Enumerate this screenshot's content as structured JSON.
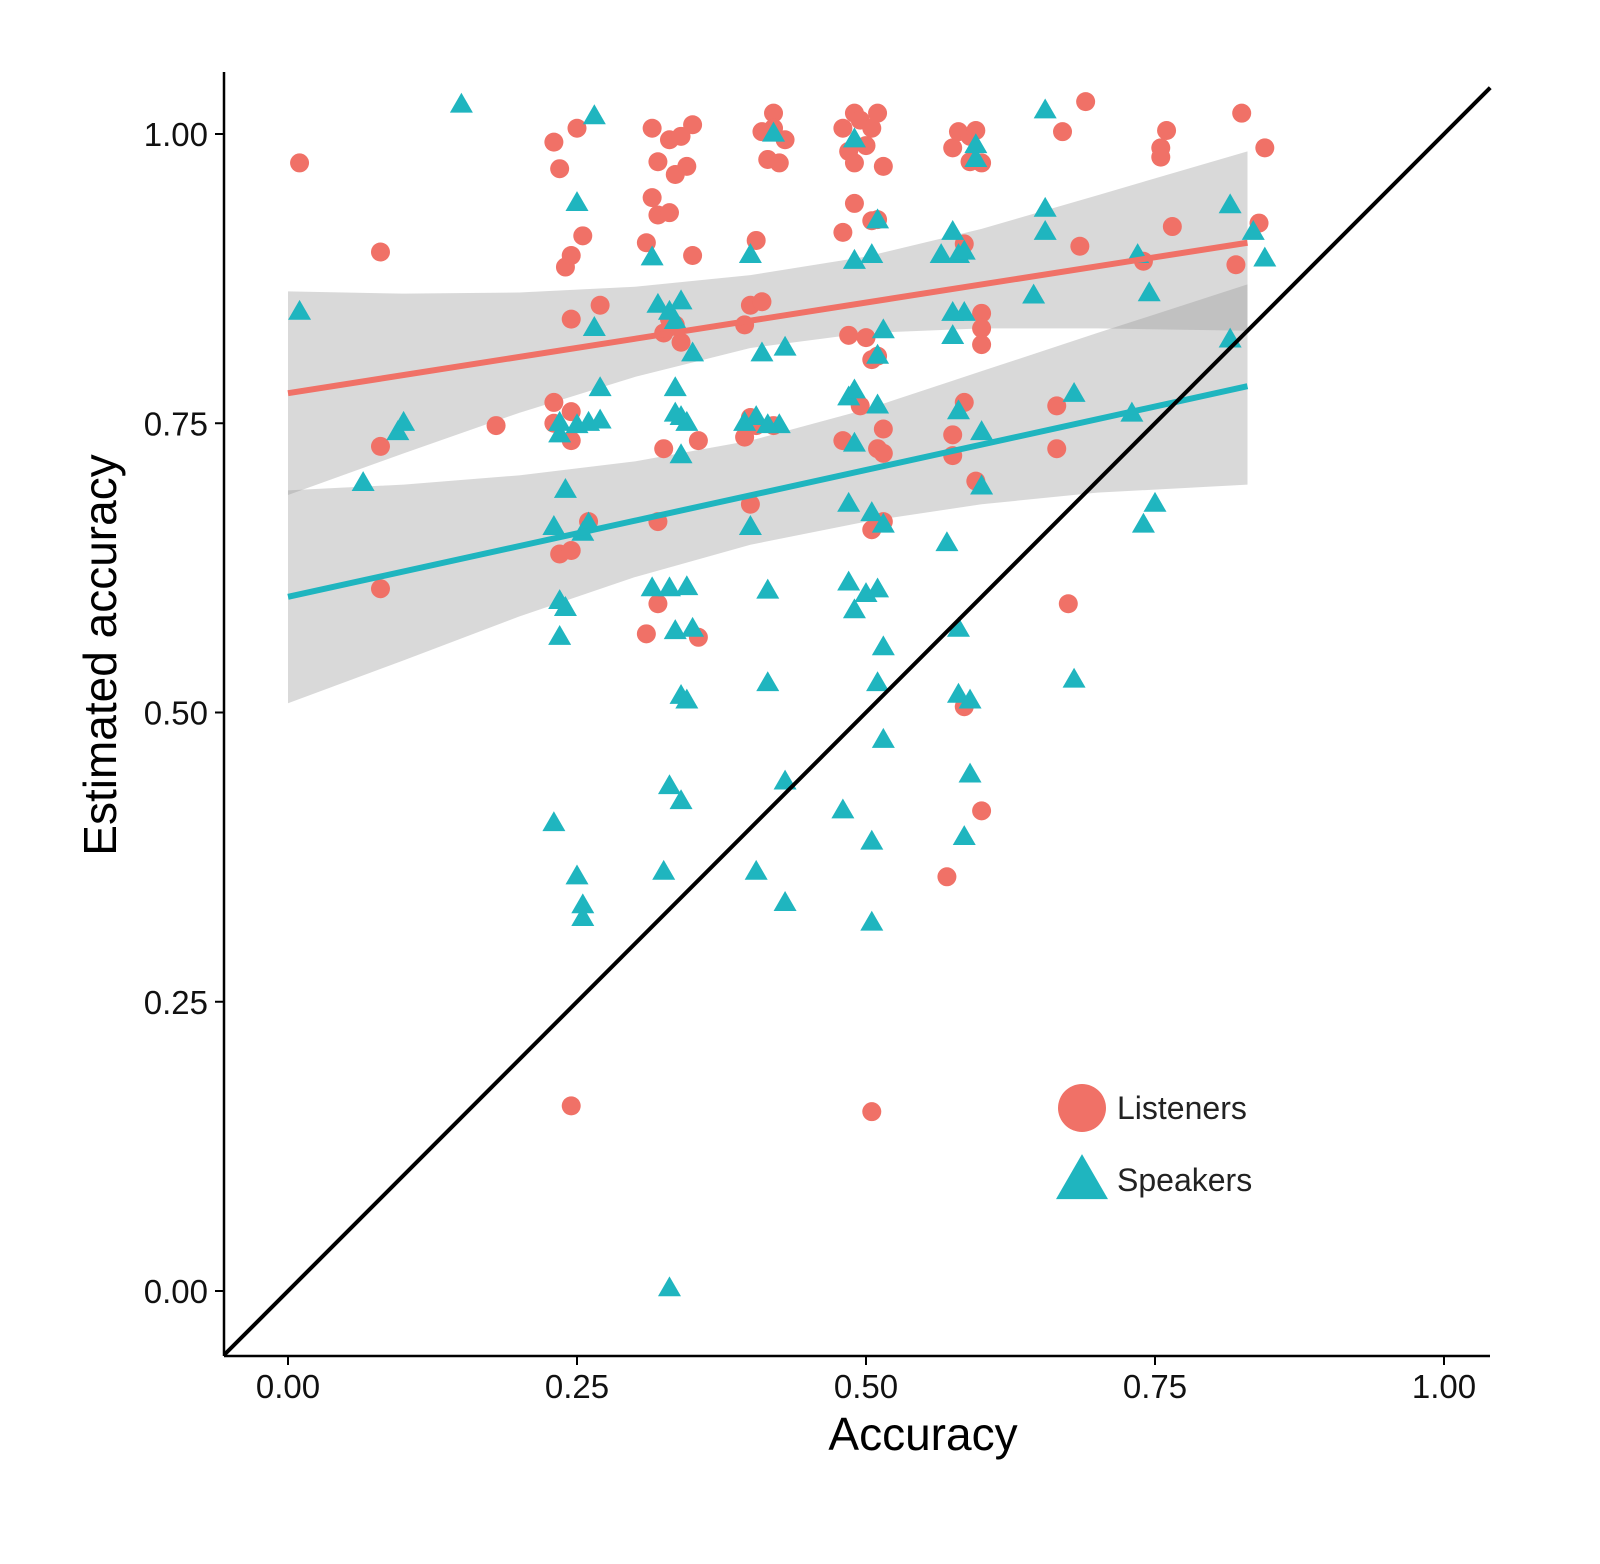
{
  "chart_data": {
    "type": "scatter",
    "xlabel": "Accuracy",
    "ylabel": "Estimated accuracy",
    "xlim": [
      -0.055,
      1.04
    ],
    "ylim": [
      -0.055,
      1.055
    ],
    "xticks": [
      "0.00",
      "0.25",
      "0.50",
      "0.75",
      "1.00"
    ],
    "yticks": [
      "0.00",
      "0.25",
      "0.50",
      "0.75",
      "1.00"
    ],
    "grid": false,
    "legend": "bottom-right",
    "reference_line": {
      "x": [
        -0.055,
        1.04
      ],
      "y": [
        -0.055,
        1.04
      ]
    },
    "series": [
      {
        "name": "Listeners",
        "marker": "circle",
        "color": "#F07167",
        "fit": {
          "x": [
            0.0,
            0.83
          ],
          "y": [
            0.776,
            0.906
          ]
        },
        "band": {
          "x": [
            0.0,
            0.1,
            0.2,
            0.3,
            0.4,
            0.5,
            0.6,
            0.7,
            0.83
          ],
          "upper": [
            0.864,
            0.862,
            0.863,
            0.868,
            0.878,
            0.894,
            0.918,
            0.947,
            0.985
          ],
          "lower": [
            0.688,
            0.724,
            0.759,
            0.79,
            0.815,
            0.828,
            0.832,
            0.832,
            0.83
          ]
        },
        "points": [
          [
            0.01,
            0.975
          ],
          [
            0.08,
            0.898
          ],
          [
            0.08,
            0.73
          ],
          [
            0.08,
            0.607
          ],
          [
            0.18,
            0.748
          ],
          [
            0.23,
            0.993
          ],
          [
            0.235,
            0.97
          ],
          [
            0.24,
            0.885
          ],
          [
            0.245,
            0.895
          ],
          [
            0.25,
            1.005
          ],
          [
            0.255,
            0.912
          ],
          [
            0.245,
            0.84
          ],
          [
            0.27,
            0.852
          ],
          [
            0.23,
            0.768
          ],
          [
            0.245,
            0.76
          ],
          [
            0.23,
            0.75
          ],
          [
            0.245,
            0.735
          ],
          [
            0.235,
            0.637
          ],
          [
            0.245,
            0.64
          ],
          [
            0.26,
            0.665
          ],
          [
            0.245,
            0.16
          ],
          [
            0.315,
            1.005
          ],
          [
            0.33,
            0.995
          ],
          [
            0.34,
            0.998
          ],
          [
            0.35,
            1.008
          ],
          [
            0.32,
            0.976
          ],
          [
            0.335,
            0.965
          ],
          [
            0.345,
            0.972
          ],
          [
            0.315,
            0.945
          ],
          [
            0.32,
            0.93
          ],
          [
            0.33,
            0.932
          ],
          [
            0.31,
            0.906
          ],
          [
            0.35,
            0.895
          ],
          [
            0.325,
            0.828
          ],
          [
            0.335,
            0.835
          ],
          [
            0.34,
            0.82
          ],
          [
            0.33,
            0.84
          ],
          [
            0.325,
            0.728
          ],
          [
            0.355,
            0.735
          ],
          [
            0.32,
            0.665
          ],
          [
            0.32,
            0.594
          ],
          [
            0.31,
            0.568
          ],
          [
            0.355,
            0.565
          ],
          [
            0.42,
            1.018
          ],
          [
            0.42,
            1.005
          ],
          [
            0.43,
            0.995
          ],
          [
            0.41,
            1.002
          ],
          [
            0.415,
            0.978
          ],
          [
            0.425,
            0.975
          ],
          [
            0.405,
            0.908
          ],
          [
            0.4,
            0.852
          ],
          [
            0.41,
            0.855
          ],
          [
            0.395,
            0.835
          ],
          [
            0.4,
            0.755
          ],
          [
            0.405,
            0.748
          ],
          [
            0.395,
            0.738
          ],
          [
            0.4,
            0.68
          ],
          [
            0.42,
            0.748
          ],
          [
            0.48,
            1.005
          ],
          [
            0.49,
            1.018
          ],
          [
            0.495,
            1.012
          ],
          [
            0.505,
            1.005
          ],
          [
            0.51,
            1.018
          ],
          [
            0.5,
            0.99
          ],
          [
            0.485,
            0.985
          ],
          [
            0.49,
            0.975
          ],
          [
            0.515,
            0.972
          ],
          [
            0.49,
            0.94
          ],
          [
            0.505,
            0.925
          ],
          [
            0.51,
            0.926
          ],
          [
            0.48,
            0.915
          ],
          [
            0.485,
            0.826
          ],
          [
            0.5,
            0.824
          ],
          [
            0.505,
            0.805
          ],
          [
            0.51,
            0.808
          ],
          [
            0.495,
            0.765
          ],
          [
            0.48,
            0.735
          ],
          [
            0.51,
            0.728
          ],
          [
            0.515,
            0.745
          ],
          [
            0.515,
            0.724
          ],
          [
            0.505,
            0.658
          ],
          [
            0.515,
            0.665
          ],
          [
            0.505,
            0.155
          ],
          [
            0.575,
            0.988
          ],
          [
            0.58,
            1.002
          ],
          [
            0.59,
            0.998
          ],
          [
            0.595,
            1.003
          ],
          [
            0.59,
            0.976
          ],
          [
            0.6,
            0.975
          ],
          [
            0.585,
            0.905
          ],
          [
            0.6,
            0.845
          ],
          [
            0.6,
            0.832
          ],
          [
            0.6,
            0.818
          ],
          [
            0.585,
            0.768
          ],
          [
            0.575,
            0.74
          ],
          [
            0.575,
            0.722
          ],
          [
            0.595,
            0.7
          ],
          [
            0.585,
            0.505
          ],
          [
            0.6,
            0.415
          ],
          [
            0.57,
            0.358
          ],
          [
            0.67,
            1.002
          ],
          [
            0.69,
            1.028
          ],
          [
            0.685,
            0.903
          ],
          [
            0.665,
            0.765
          ],
          [
            0.665,
            0.728
          ],
          [
            0.675,
            0.594
          ],
          [
            0.755,
            0.988
          ],
          [
            0.755,
            0.98
          ],
          [
            0.76,
            1.003
          ],
          [
            0.765,
            0.92
          ],
          [
            0.74,
            0.89
          ],
          [
            0.825,
            1.018
          ],
          [
            0.84,
            0.923
          ],
          [
            0.82,
            0.887
          ],
          [
            0.845,
            0.988
          ]
        ]
      },
      {
        "name": "Speakers",
        "marker": "triangle",
        "color": "#1FB5BF",
        "fit": {
          "x": [
            0.0,
            0.83
          ],
          "y": [
            0.6,
            0.782
          ]
        },
        "band": {
          "x": [
            0.0,
            0.1,
            0.2,
            0.3,
            0.4,
            0.5,
            0.6,
            0.7,
            0.83
          ],
          "upper": [
            0.692,
            0.697,
            0.705,
            0.717,
            0.735,
            0.762,
            0.795,
            0.828,
            0.87
          ],
          "lower": [
            0.508,
            0.545,
            0.583,
            0.617,
            0.645,
            0.665,
            0.68,
            0.69,
            0.697
          ]
        },
        "points": [
          [
            0.01,
            0.846
          ],
          [
            0.065,
            0.698
          ],
          [
            0.095,
            0.742
          ],
          [
            0.1,
            0.75
          ],
          [
            0.15,
            1.025
          ],
          [
            0.25,
            0.94
          ],
          [
            0.23,
            0.66
          ],
          [
            0.24,
            0.692
          ],
          [
            0.255,
            0.655
          ],
          [
            0.26,
            0.663
          ],
          [
            0.235,
            0.74
          ],
          [
            0.235,
            0.75
          ],
          [
            0.25,
            0.748
          ],
          [
            0.26,
            0.75
          ],
          [
            0.27,
            0.752
          ],
          [
            0.27,
            0.78
          ],
          [
            0.265,
            0.832
          ],
          [
            0.265,
            1.015
          ],
          [
            0.235,
            0.596
          ],
          [
            0.24,
            0.59
          ],
          [
            0.235,
            0.565
          ],
          [
            0.23,
            0.404
          ],
          [
            0.25,
            0.358
          ],
          [
            0.255,
            0.333
          ],
          [
            0.255,
            0.322
          ],
          [
            0.315,
            0.893
          ],
          [
            0.32,
            0.852
          ],
          [
            0.33,
            0.846
          ],
          [
            0.335,
            0.838
          ],
          [
            0.34,
            0.855
          ],
          [
            0.35,
            0.81
          ],
          [
            0.335,
            0.78
          ],
          [
            0.335,
            0.758
          ],
          [
            0.34,
            0.755
          ],
          [
            0.345,
            0.75
          ],
          [
            0.34,
            0.722
          ],
          [
            0.315,
            0.607
          ],
          [
            0.33,
            0.607
          ],
          [
            0.345,
            0.608
          ],
          [
            0.335,
            0.57
          ],
          [
            0.35,
            0.572
          ],
          [
            0.34,
            0.514
          ],
          [
            0.345,
            0.51
          ],
          [
            0.33,
            0.436
          ],
          [
            0.34,
            0.423
          ],
          [
            0.325,
            0.362
          ],
          [
            0.33,
            0.002
          ],
          [
            0.4,
            0.895
          ],
          [
            0.395,
            0.75
          ],
          [
            0.405,
            0.755
          ],
          [
            0.41,
            0.81
          ],
          [
            0.42,
            1.0
          ],
          [
            0.43,
            0.815
          ],
          [
            0.425,
            0.748
          ],
          [
            0.415,
            0.748
          ],
          [
            0.4,
            0.66
          ],
          [
            0.415,
            0.605
          ],
          [
            0.415,
            0.525
          ],
          [
            0.43,
            0.44
          ],
          [
            0.405,
            0.362
          ],
          [
            0.43,
            0.335
          ],
          [
            0.49,
            0.995
          ],
          [
            0.49,
            0.89
          ],
          [
            0.505,
            0.895
          ],
          [
            0.51,
            0.925
          ],
          [
            0.515,
            0.83
          ],
          [
            0.51,
            0.808
          ],
          [
            0.485,
            0.772
          ],
          [
            0.49,
            0.778
          ],
          [
            0.51,
            0.765
          ],
          [
            0.49,
            0.732
          ],
          [
            0.485,
            0.68
          ],
          [
            0.505,
            0.672
          ],
          [
            0.515,
            0.662
          ],
          [
            0.485,
            0.612
          ],
          [
            0.5,
            0.602
          ],
          [
            0.51,
            0.606
          ],
          [
            0.49,
            0.588
          ],
          [
            0.515,
            0.556
          ],
          [
            0.51,
            0.525
          ],
          [
            0.515,
            0.476
          ],
          [
            0.48,
            0.415
          ],
          [
            0.505,
            0.388
          ],
          [
            0.505,
            0.318
          ],
          [
            0.565,
            0.895
          ],
          [
            0.575,
            0.915
          ],
          [
            0.58,
            0.895
          ],
          [
            0.585,
            0.898
          ],
          [
            0.595,
            0.99
          ],
          [
            0.595,
            0.978
          ],
          [
            0.575,
            0.845
          ],
          [
            0.585,
            0.845
          ],
          [
            0.575,
            0.825
          ],
          [
            0.58,
            0.76
          ],
          [
            0.6,
            0.742
          ],
          [
            0.6,
            0.695
          ],
          [
            0.57,
            0.646
          ],
          [
            0.58,
            0.572
          ],
          [
            0.58,
            0.515
          ],
          [
            0.59,
            0.51
          ],
          [
            0.59,
            0.446
          ],
          [
            0.585,
            0.392
          ],
          [
            0.655,
            1.02
          ],
          [
            0.655,
            0.935
          ],
          [
            0.655,
            0.915
          ],
          [
            0.645,
            0.86
          ],
          [
            0.68,
            0.775
          ],
          [
            0.68,
            0.528
          ],
          [
            0.735,
            0.895
          ],
          [
            0.745,
            0.862
          ],
          [
            0.73,
            0.758
          ],
          [
            0.74,
            0.662
          ],
          [
            0.75,
            0.68
          ],
          [
            0.815,
            0.938
          ],
          [
            0.835,
            0.915
          ],
          [
            0.845,
            0.892
          ],
          [
            0.815,
            0.822
          ]
        ]
      }
    ]
  }
}
